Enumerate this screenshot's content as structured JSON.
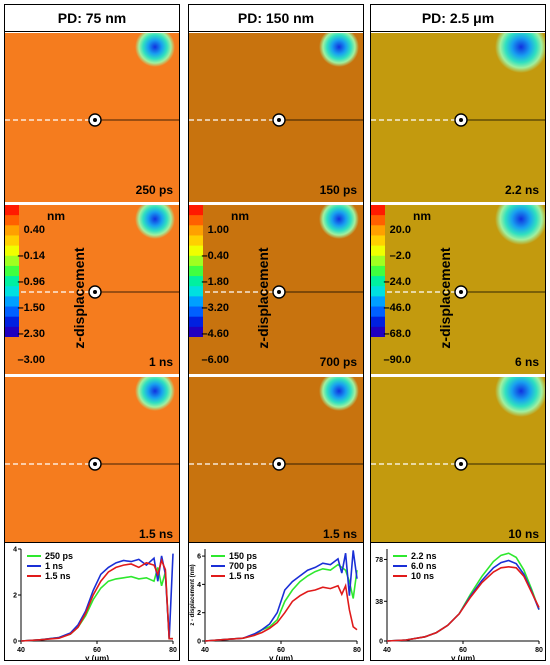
{
  "columns": [
    {
      "title": "PD: 75 nm",
      "bg": "#f57c1e",
      "panels": [
        "250 ps",
        "1 ns",
        "1.5 ns"
      ],
      "colorbar": {
        "unit": "nm",
        "ticks": [
          "0.40",
          "–0.14",
          "–0.96",
          "–1.50",
          "–2.30",
          "–3.00"
        ],
        "title": "z-displacement"
      }
    },
    {
      "title": "PD: 150 nm",
      "bg": "#c8730e",
      "panels": [
        "150 ps",
        "700 ps",
        "1.5 ns"
      ],
      "colorbar": {
        "unit": "nm",
        "ticks": [
          "1.00",
          "–0.40",
          "–1.80",
          "–3.20",
          "–4.60",
          "–6.00"
        ],
        "title": "z-displacement"
      }
    },
    {
      "title": "PD: 2.5 μm",
      "bg": "#c39a0e",
      "panels": [
        "2.2 ns",
        "6 ns",
        "10 ns"
      ],
      "colorbar": {
        "unit": "nm",
        "ticks": [
          "20.0",
          "–2.0",
          "–24.0",
          "–46.0",
          "–68.0",
          "–90.0"
        ],
        "title": "z-displacement"
      }
    }
  ],
  "chart_data": [
    {
      "type": "line",
      "xlabel": "y (μm)",
      "ylabel": "",
      "xlim": [
        40,
        80
      ],
      "ylim": [
        0,
        4
      ],
      "xticks": [
        "40",
        "60",
        "80"
      ],
      "yticks": [
        "0",
        "2",
        "4"
      ],
      "series": [
        {
          "name": "250 ps",
          "color": "#2ee82e",
          "x": [
            40,
            45,
            50,
            53,
            55,
            57,
            59,
            61,
            63,
            65,
            67,
            69,
            71,
            73,
            75,
            76,
            77,
            78,
            79,
            80
          ],
          "y": [
            0,
            0.05,
            0.15,
            0.3,
            0.6,
            1.1,
            1.8,
            2.3,
            2.6,
            2.7,
            2.75,
            2.8,
            2.7,
            2.75,
            2.6,
            3.2,
            2.4,
            3.0,
            0.1,
            0.1
          ]
        },
        {
          "name": "1 ns",
          "color": "#1a2fd6",
          "x": [
            40,
            45,
            50,
            53,
            55,
            57,
            59,
            61,
            63,
            65,
            67,
            69,
            71,
            73,
            75,
            76,
            77,
            78,
            79,
            80
          ],
          "y": [
            0,
            0.05,
            0.15,
            0.35,
            0.7,
            1.3,
            2.2,
            2.9,
            3.2,
            3.4,
            3.5,
            3.45,
            3.55,
            3.3,
            3.6,
            2.6,
            3.7,
            2.9,
            0.1,
            3.8
          ]
        },
        {
          "name": "1.5 ns",
          "color": "#e01a1a",
          "x": [
            40,
            45,
            50,
            53,
            55,
            57,
            59,
            61,
            63,
            65,
            67,
            69,
            71,
            73,
            75,
            76,
            77,
            78,
            79,
            80
          ],
          "y": [
            0,
            0.05,
            0.12,
            0.3,
            0.6,
            1.2,
            2.0,
            2.6,
            3.0,
            3.2,
            3.3,
            3.35,
            3.2,
            3.4,
            3.3,
            2.9,
            3.5,
            3.1,
            0.1,
            0.1
          ]
        }
      ]
    },
    {
      "type": "line",
      "xlabel": "y (μm)",
      "ylabel": "z - displacement (nm)",
      "xlim": [
        40,
        80
      ],
      "ylim": [
        0,
        6.5
      ],
      "xticks": [
        "40",
        "60",
        "80"
      ],
      "yticks": [
        "0",
        "2",
        "4",
        "6"
      ],
      "series": [
        {
          "name": "150 ps",
          "color": "#2ee82e",
          "x": [
            40,
            45,
            50,
            53,
            55,
            57,
            59,
            61,
            63,
            65,
            67,
            69,
            71,
            73,
            75,
            77,
            78,
            79,
            80
          ],
          "y": [
            0,
            0.1,
            0.2,
            0.4,
            0.8,
            1.0,
            1.5,
            2.8,
            3.6,
            4.2,
            4.6,
            4.9,
            5.1,
            5.0,
            5.4,
            5.0,
            4.2,
            3.0,
            5.0
          ]
        },
        {
          "name": "700 ps",
          "color": "#1a2fd6",
          "x": [
            40,
            45,
            50,
            53,
            55,
            57,
            59,
            61,
            63,
            65,
            67,
            69,
            71,
            73,
            75,
            76,
            77,
            78,
            79,
            80
          ],
          "y": [
            0,
            0.1,
            0.2,
            0.5,
            0.8,
            1.2,
            2.0,
            3.6,
            4.2,
            4.6,
            5.0,
            5.2,
            5.5,
            5.4,
            5.8,
            4.8,
            6.2,
            3.2,
            6.4,
            4.4
          ]
        },
        {
          "name": "1.5 ns",
          "color": "#e01a1a",
          "x": [
            40,
            45,
            50,
            53,
            55,
            57,
            59,
            61,
            63,
            65,
            67,
            69,
            71,
            73,
            75,
            76,
            77,
            78,
            79,
            80
          ],
          "y": [
            0,
            0.1,
            0.2,
            0.4,
            0.6,
            0.9,
            1.3,
            2.0,
            2.8,
            3.2,
            3.5,
            3.6,
            3.8,
            3.7,
            3.9,
            3.3,
            3.9,
            2.2,
            1.0,
            0.8
          ]
        }
      ]
    },
    {
      "type": "line",
      "xlabel": "y (μm)",
      "ylabel": "",
      "xlim": [
        40,
        80
      ],
      "ylim": [
        0,
        88
      ],
      "xticks": [
        "40",
        "60",
        "80"
      ],
      "yticks": [
        "0",
        "38",
        "78"
      ],
      "series": [
        {
          "name": "2.2 ns",
          "color": "#2ee82e",
          "x": [
            40,
            45,
            50,
            53,
            56,
            59,
            62,
            65,
            68,
            70,
            72,
            74,
            76,
            78,
            80
          ],
          "y": [
            0,
            1,
            4,
            8,
            15,
            26,
            45,
            62,
            76,
            82,
            84,
            80,
            68,
            50,
            30
          ]
        },
        {
          "name": "6.0 ns",
          "color": "#1a2fd6",
          "x": [
            40,
            45,
            50,
            53,
            56,
            59,
            62,
            65,
            68,
            70,
            72,
            74,
            76,
            78,
            80
          ],
          "y": [
            0,
            1,
            4,
            8,
            15,
            26,
            43,
            58,
            70,
            75,
            77,
            74,
            64,
            48,
            30
          ]
        },
        {
          "name": "10 ns",
          "color": "#e01a1a",
          "x": [
            40,
            45,
            50,
            53,
            56,
            59,
            62,
            65,
            68,
            70,
            72,
            74,
            76,
            78,
            80
          ],
          "y": [
            0,
            1,
            4,
            8,
            15,
            26,
            42,
            56,
            66,
            70,
            71,
            70,
            62,
            47,
            32
          ]
        }
      ]
    }
  ]
}
